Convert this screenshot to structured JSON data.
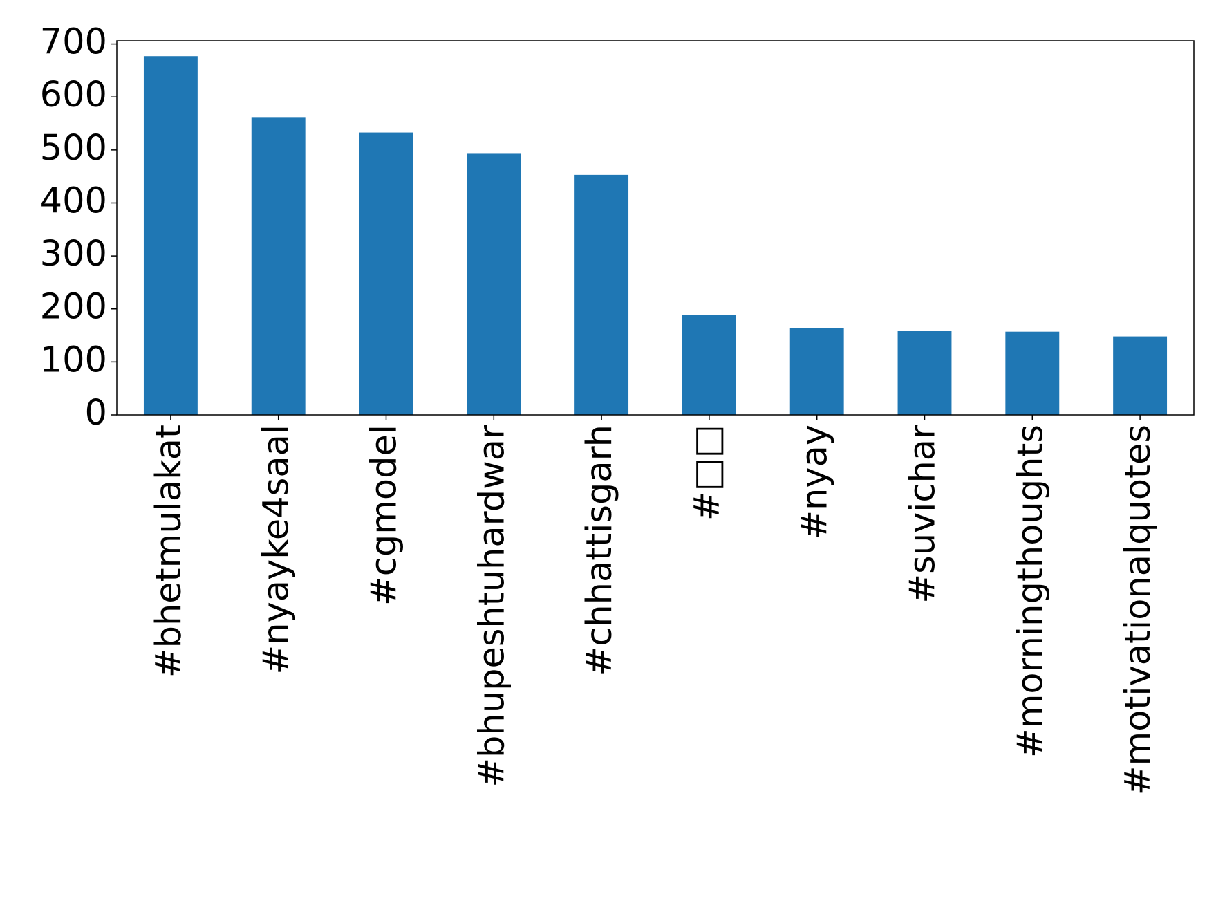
{
  "chart_data": {
    "type": "bar",
    "categories": [
      "#bhetmulakat",
      "#nyayke4saal",
      "#cgmodel",
      "#bhupeshtuhardwar",
      "#chhattisgarh",
      "#□□",
      "#nyay",
      "#suvichar",
      "#morningthoughts",
      "#motivationalquotes"
    ],
    "values": [
      677,
      562,
      533,
      494,
      453,
      189,
      164,
      158,
      157,
      148
    ],
    "color": "#1f77b4",
    "ylim": [
      0,
      706
    ],
    "yticks": [
      0,
      100,
      200,
      300,
      400,
      500,
      600,
      700
    ],
    "grid": false
  }
}
